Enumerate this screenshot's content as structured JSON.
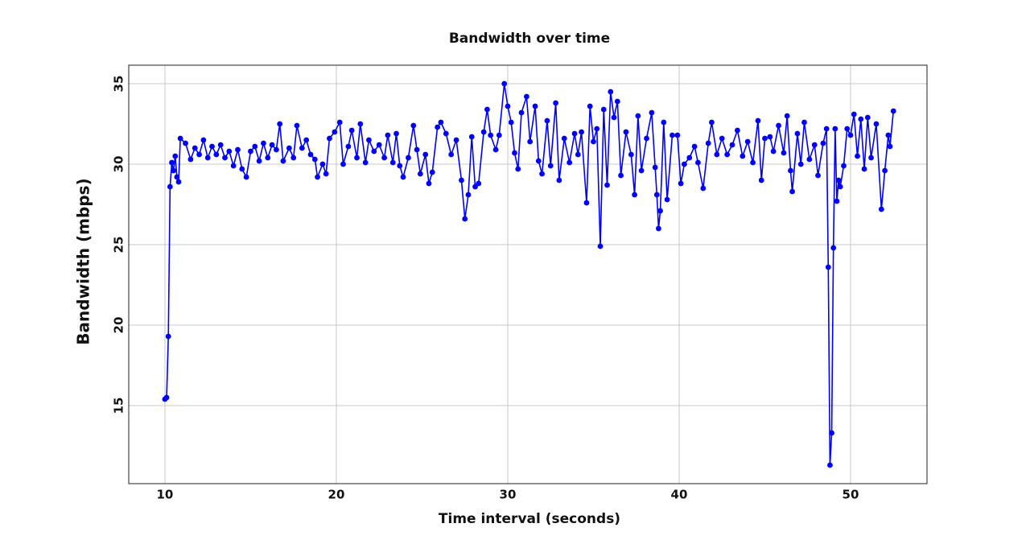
{
  "chart_data": {
    "type": "line",
    "title": "Bandwidth over time",
    "x_label": "Time interval (seconds)",
    "y_label": "Bandwidth (mbps)",
    "xlim": [
      7.89,
      54.46
    ],
    "ylim": [
      10.15,
      36.15
    ],
    "xticks": [
      10,
      20,
      30,
      40,
      50
    ],
    "yticks": [
      15,
      20,
      25,
      30,
      35
    ],
    "grid": true,
    "x": [
      10.0,
      10.1,
      10.2,
      10.3,
      10.4,
      10.5,
      10.6,
      10.7,
      10.8,
      10.9,
      11.2,
      11.5,
      11.75,
      12.0,
      12.25,
      12.5,
      12.75,
      13.0,
      13.25,
      13.5,
      13.75,
      14.0,
      14.25,
      14.5,
      14.75,
      15.0,
      15.25,
      15.5,
      15.75,
      16.0,
      16.25,
      16.5,
      16.7,
      16.9,
      17.25,
      17.5,
      17.7,
      18.0,
      18.25,
      18.5,
      18.75,
      18.9,
      19.2,
      19.4,
      19.6,
      19.9,
      20.2,
      20.4,
      20.7,
      20.9,
      21.2,
      21.4,
      21.7,
      21.9,
      22.2,
      22.5,
      22.8,
      23.0,
      23.3,
      23.5,
      23.7,
      23.9,
      24.2,
      24.5,
      24.7,
      24.9,
      25.2,
      25.4,
      25.6,
      25.9,
      26.1,
      26.4,
      26.7,
      27.0,
      27.3,
      27.5,
      27.7,
      27.9,
      28.1,
      28.3,
      28.6,
      28.8,
      29.0,
      29.3,
      29.5,
      29.8,
      30.0,
      30.2,
      30.4,
      30.6,
      30.8,
      31.1,
      31.3,
      31.6,
      31.8,
      32.0,
      32.3,
      32.5,
      32.8,
      33.0,
      33.3,
      33.6,
      33.9,
      34.1,
      34.3,
      34.6,
      34.8,
      35.0,
      35.2,
      35.4,
      35.6,
      35.8,
      36.0,
      36.2,
      36.4,
      36.6,
      36.9,
      37.2,
      37.4,
      37.6,
      37.8,
      38.1,
      38.4,
      38.6,
      38.7,
      38.8,
      38.9,
      39.1,
      39.3,
      39.6,
      39.9,
      40.1,
      40.3,
      40.6,
      40.9,
      41.1,
      41.4,
      41.7,
      41.9,
      42.2,
      42.5,
      42.8,
      43.1,
      43.4,
      43.7,
      44.0,
      44.3,
      44.6,
      44.8,
      45.0,
      45.3,
      45.5,
      45.8,
      46.1,
      46.3,
      46.5,
      46.6,
      46.9,
      47.1,
      47.3,
      47.6,
      47.9,
      48.1,
      48.4,
      48.6,
      48.7,
      48.8,
      48.9,
      49.0,
      49.1,
      49.2,
      49.3,
      49.4,
      49.6,
      49.8,
      50.0,
      50.2,
      50.4,
      50.6,
      50.8,
      51.0,
      51.2,
      51.5,
      51.8,
      52.0,
      52.2,
      52.3,
      52.5
    ],
    "series": [
      {
        "name": "Bandwidth",
        "color": "#0000ff",
        "values": [
          15.4,
          15.5,
          19.3,
          28.6,
          30.1,
          29.6,
          30.5,
          29.2,
          28.9,
          31.6,
          31.3,
          30.3,
          31.0,
          30.6,
          31.5,
          30.4,
          31.1,
          30.6,
          31.2,
          30.4,
          30.8,
          29.9,
          30.9,
          29.7,
          29.2,
          30.8,
          31.1,
          30.2,
          31.3,
          30.4,
          31.2,
          30.9,
          32.5,
          30.2,
          31.0,
          30.4,
          32.4,
          31.0,
          31.5,
          30.6,
          30.3,
          29.2,
          30.0,
          29.4,
          31.6,
          32.0,
          32.6,
          30.0,
          31.1,
          32.1,
          30.4,
          32.5,
          30.1,
          31.5,
          30.8,
          31.2,
          30.4,
          31.8,
          30.1,
          31.9,
          29.9,
          29.2,
          30.4,
          32.4,
          30.9,
          29.4,
          30.6,
          28.8,
          29.5,
          32.3,
          32.6,
          31.9,
          30.6,
          31.5,
          29.0,
          26.6,
          28.1,
          31.7,
          28.6,
          28.8,
          32.0,
          33.4,
          31.8,
          30.9,
          31.8,
          35.0,
          33.6,
          32.6,
          30.7,
          29.7,
          33.2,
          34.2,
          31.4,
          33.6,
          30.2,
          29.4,
          32.7,
          29.9,
          33.8,
          29.0,
          31.6,
          30.1,
          31.9,
          30.6,
          32.0,
          27.6,
          33.6,
          31.4,
          32.2,
          24.9,
          33.4,
          28.7,
          34.5,
          32.9,
          33.9,
          29.3,
          32.0,
          30.6,
          28.1,
          33.0,
          29.6,
          31.6,
          33.2,
          29.8,
          28.1,
          26.0,
          27.1,
          32.6,
          27.8,
          31.8,
          31.8,
          28.8,
          30.0,
          30.4,
          31.1,
          30.1,
          28.5,
          31.3,
          32.6,
          30.6,
          31.6,
          30.6,
          31.2,
          32.1,
          30.5,
          31.4,
          30.1,
          32.7,
          29.0,
          31.6,
          31.7,
          30.8,
          32.4,
          30.7,
          33.0,
          29.6,
          28.3,
          31.9,
          30.0,
          32.6,
          30.3,
          31.2,
          29.3,
          31.3,
          32.2,
          23.6,
          11.3,
          13.3,
          24.8,
          32.2,
          27.7,
          29.0,
          28.6,
          29.9,
          32.2,
          31.8,
          33.1,
          30.5,
          32.8,
          29.7,
          32.9,
          30.4,
          32.5,
          27.2,
          29.6,
          31.8,
          31.1,
          33.3
        ]
      }
    ]
  }
}
